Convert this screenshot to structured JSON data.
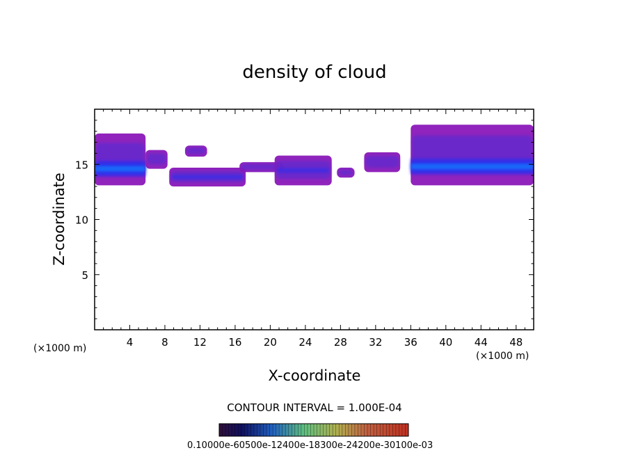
{
  "chart_data": {
    "type": "heatmap",
    "title": "density of cloud",
    "xlabel": "X-coordinate",
    "ylabel": "Z-coordinate",
    "x_unit": "(×1000 m)",
    "x_unit_right": "(×1000 m)",
    "xlim": [
      0,
      50
    ],
    "ylim": [
      0,
      20
    ],
    "x_ticks": [
      4,
      8,
      12,
      16,
      20,
      24,
      28,
      32,
      36,
      40,
      44,
      48
    ],
    "y_ticks": [
      5,
      10,
      15
    ],
    "contour_interval": "CONTOUR INTERVAL = 1.000E-04",
    "colorbar_labels": "0.10000e-60500e-12400e-18300e-24200e-30100e-03",
    "colors": {
      "outer": "#8a18b8",
      "mid": "#5a2bd0",
      "core": "#2a2ff0",
      "peak": "#1080ff"
    },
    "regions": [
      {
        "name": "left cloud",
        "x": [
          0,
          5.8
        ],
        "z": [
          13.1,
          17.8
        ],
        "core_z": 14.6,
        "level": "high"
      },
      {
        "name": "left upper fringe",
        "x": [
          5.8,
          8.3
        ],
        "z": [
          14.6,
          16.3
        ],
        "level": "low"
      },
      {
        "name": "central band A",
        "x": [
          8.5,
          17.2
        ],
        "z": [
          13.0,
          14.7
        ],
        "level": "mid"
      },
      {
        "name": "central band B",
        "x": [
          10.3,
          12.8
        ],
        "z": [
          15.7,
          16.7
        ],
        "level": "low"
      },
      {
        "name": "central band C",
        "x": [
          16.5,
          21.5
        ],
        "z": [
          14.3,
          15.2
        ],
        "level": "low"
      },
      {
        "name": "central cluster",
        "x": [
          20.5,
          27
        ],
        "z": [
          13.1,
          15.8
        ],
        "level": "mid"
      },
      {
        "name": "small cell",
        "x": [
          27.6,
          29.6
        ],
        "z": [
          13.8,
          14.7
        ],
        "level": "low"
      },
      {
        "name": "mid-right cell",
        "x": [
          30.7,
          34.8
        ],
        "z": [
          14.3,
          16.1
        ],
        "level": "low"
      },
      {
        "name": "right cloud",
        "x": [
          36,
          50
        ],
        "z": [
          13.1,
          18.6
        ],
        "core_z": 14.8,
        "level": "high"
      }
    ]
  }
}
